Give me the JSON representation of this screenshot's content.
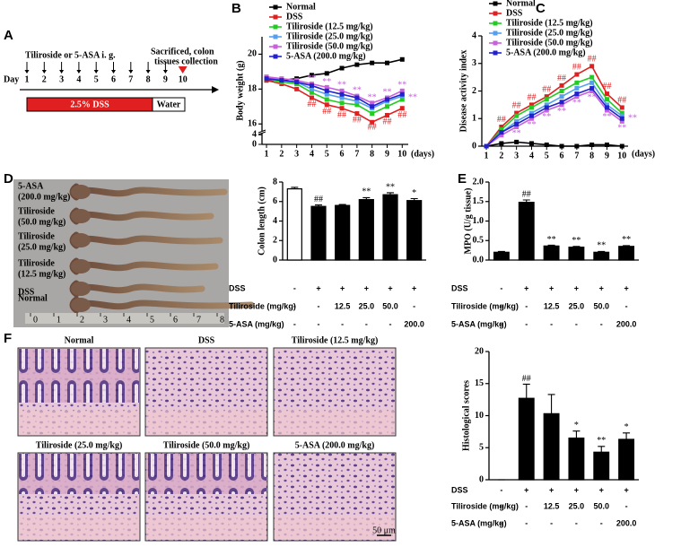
{
  "panel_a": {
    "label": "A",
    "day_label": "Day",
    "days": [
      1,
      2,
      3,
      4,
      5,
      6,
      7,
      8,
      9,
      10
    ],
    "treatment": "Tiliroside or 5-ASA i. g.",
    "sacrifice": [
      "Sacrificed, colon",
      "tissues collection"
    ],
    "dss": "2.5% DSS",
    "water": "Water"
  },
  "panel_d": {
    "label": "D",
    "labels": [
      [
        "5-ASA",
        "(200.0 mg/kg)"
      ],
      [
        "Tiliroside",
        "(50.0 mg/kg)"
      ],
      [
        "Tiliroside",
        "(25.0 mg/kg)"
      ],
      [
        "Tiliroside",
        "(12.5 mg/kg)"
      ],
      [
        "DSS"
      ],
      [
        "Normal"
      ]
    ],
    "ruler": [
      "0",
      "1",
      "2",
      "3",
      "4",
      "5",
      "6",
      "7",
      "8"
    ]
  },
  "panel_f": {
    "label": "F",
    "images": [
      "Normal",
      "DSS",
      "Tiliroside (12.5 mg/kg)",
      "Tiliroside (25.0 mg/kg)",
      "Tiliroside (50.0 mg/kg)",
      "5-ASA (200.0 mg/kg)"
    ],
    "scale_bar": "50 μm"
  },
  "chart_data": [
    {
      "type": "line",
      "label": "B",
      "y_label": "Body weight (g)",
      "x_label": "(days)",
      "x": [
        1,
        2,
        3,
        4,
        5,
        6,
        7,
        8,
        9,
        10
      ],
      "xlim": [
        0.7,
        10.4
      ],
      "xticks": [
        1,
        2,
        3,
        4,
        5,
        6,
        7,
        8,
        9,
        10
      ],
      "ylim": [
        15.6,
        21
      ],
      "yticks": [
        16,
        18,
        20
      ],
      "break_ylim": [
        0,
        4.5
      ],
      "break_yticks": [
        0,
        4
      ],
      "series": [
        {
          "name": "Normal",
          "color": "#000000",
          "values": [
            18.5,
            18.5,
            18.6,
            18.8,
            18.9,
            19.2,
            19.4,
            19.5,
            19.5,
            19.7
          ]
        },
        {
          "name": "DSS",
          "color": "#e02020",
          "values": [
            18.5,
            18.3,
            18.0,
            17.5,
            17.1,
            16.9,
            16.6,
            16.1,
            16.5,
            16.9
          ]
        },
        {
          "name": "Tiliroside (12.5 mg/kg)",
          "color": "#22cc22",
          "values": [
            18.6,
            18.4,
            18.3,
            17.8,
            17.4,
            17.2,
            17.1,
            16.6,
            17.0,
            17.4
          ]
        },
        {
          "name": "Tiliroside (25.0 mg/kg)",
          "color": "#55a0ee",
          "values": [
            18.7,
            18.5,
            18.4,
            18.0,
            17.7,
            17.5,
            17.3,
            16.9,
            17.3,
            17.6
          ]
        },
        {
          "name": "Tiliroside (50.0 mg/kg)",
          "color": "#c860dd",
          "values": [
            18.7,
            18.6,
            18.5,
            18.3,
            18.1,
            17.9,
            17.6,
            17.2,
            17.5,
            17.9
          ]
        },
        {
          "name": "5-ASA (200.0 mg/kg)",
          "color": "#2222cc",
          "values": [
            18.6,
            18.5,
            18.4,
            18.2,
            17.9,
            17.7,
            17.5,
            17.0,
            17.4,
            17.7
          ]
        }
      ],
      "annotations": [
        {
          "text": "##",
          "x": 4,
          "y": 17.1,
          "color": "#e02020"
        },
        {
          "text": "##",
          "x": 5,
          "y": 16.7,
          "color": "#e02020"
        },
        {
          "text": "##",
          "x": 6,
          "y": 16.5,
          "color": "#e02020"
        },
        {
          "text": "##",
          "x": 7,
          "y": 16.2,
          "color": "#e02020"
        },
        {
          "text": "##",
          "x": 8,
          "y": 15.8,
          "color": "#e02020"
        },
        {
          "text": "##",
          "x": 9,
          "y": 16.1,
          "color": "#e02020"
        },
        {
          "text": "##",
          "x": 10,
          "y": 16.5,
          "color": "#e02020"
        },
        {
          "text": "**",
          "x": 4,
          "y": 18.6,
          "color": "#c860dd"
        },
        {
          "text": "**",
          "x": 5,
          "y": 18.4,
          "color": "#c860dd"
        },
        {
          "text": "**",
          "x": 6,
          "y": 18.2,
          "color": "#c860dd"
        },
        {
          "text": "**",
          "x": 7,
          "y": 17.9,
          "color": "#c860dd"
        },
        {
          "text": "**",
          "x": 8,
          "y": 17.5,
          "color": "#c860dd"
        },
        {
          "text": "**",
          "x": 9,
          "y": 17.8,
          "color": "#c860dd"
        },
        {
          "text": "**",
          "x": 10,
          "y": 18.2,
          "color": "#c860dd"
        },
        {
          "text": "**",
          "x": 10.7,
          "y": 17.5,
          "color": "#c860dd"
        }
      ]
    },
    {
      "type": "line",
      "label": "C",
      "y_label": "Disease activity index",
      "x_label": "(days)",
      "x": [
        1,
        2,
        3,
        4,
        5,
        6,
        7,
        8,
        9,
        10
      ],
      "xlim": [
        0.7,
        10.4
      ],
      "xticks": [
        1,
        2,
        3,
        4,
        5,
        6,
        7,
        8,
        9,
        10
      ],
      "ylim": [
        0,
        4
      ],
      "yticks": [
        0,
        1,
        2,
        3,
        4
      ],
      "series": [
        {
          "name": "Normal",
          "color": "#000000",
          "values": [
            0,
            0.1,
            0.15,
            0.1,
            0.05,
            0,
            0,
            0.05,
            0.05,
            0
          ]
        },
        {
          "name": "DSS",
          "color": "#e02020",
          "values": [
            0,
            0.7,
            1.2,
            1.5,
            1.8,
            2.2,
            2.6,
            2.9,
            1.9,
            1.4
          ]
        },
        {
          "name": "Tiliroside (12.5 mg/kg)",
          "color": "#22cc22",
          "values": [
            0,
            0.6,
            1.1,
            1.4,
            1.7,
            2.0,
            2.3,
            2.5,
            1.7,
            1.2
          ]
        },
        {
          "name": "Tiliroside (25.0 mg/kg)",
          "color": "#55a0ee",
          "values": [
            0,
            0.5,
            0.9,
            1.2,
            1.5,
            1.8,
            2.1,
            2.3,
            1.5,
            1.1
          ]
        },
        {
          "name": "Tiliroside (50.0 mg/kg)",
          "color": "#c860dd",
          "values": [
            0,
            0.4,
            0.7,
            1.0,
            1.3,
            1.5,
            1.8,
            2.0,
            1.3,
            0.9
          ]
        },
        {
          "name": "5-ASA (200.0 mg/kg)",
          "color": "#2222cc",
          "values": [
            0,
            0.5,
            0.8,
            1.1,
            1.4,
            1.6,
            1.9,
            2.1,
            1.4,
            1.0
          ]
        }
      ],
      "annotations": [
        {
          "text": "##",
          "x": 2,
          "y": 0.95,
          "color": "#e02020"
        },
        {
          "text": "##",
          "x": 3,
          "y": 1.45,
          "color": "#e02020"
        },
        {
          "text": "##",
          "x": 4,
          "y": 1.75,
          "color": "#e02020"
        },
        {
          "text": "##",
          "x": 5,
          "y": 2.05,
          "color": "#e02020"
        },
        {
          "text": "##",
          "x": 6,
          "y": 2.45,
          "color": "#e02020"
        },
        {
          "text": "##",
          "x": 7,
          "y": 2.85,
          "color": "#e02020"
        },
        {
          "text": "##",
          "x": 8,
          "y": 3.15,
          "color": "#e02020"
        },
        {
          "text": "##",
          "x": 9,
          "y": 2.15,
          "color": "#e02020"
        },
        {
          "text": "##",
          "x": 10,
          "y": 1.65,
          "color": "#e02020"
        },
        {
          "text": "**",
          "x": 3,
          "y": 0.45,
          "color": "#c860dd"
        },
        {
          "text": "**",
          "x": 4,
          "y": 0.75,
          "color": "#c860dd"
        },
        {
          "text": "**",
          "x": 5,
          "y": 1.05,
          "color": "#c860dd"
        },
        {
          "text": "**",
          "x": 6,
          "y": 1.25,
          "color": "#c860dd"
        },
        {
          "text": "**",
          "x": 7,
          "y": 1.55,
          "color": "#c860dd"
        },
        {
          "text": "**",
          "x": 8,
          "y": 1.75,
          "color": "#c860dd"
        },
        {
          "text": "**",
          "x": 9,
          "y": 1.05,
          "color": "#c860dd"
        },
        {
          "text": "**",
          "x": 10,
          "y": 0.65,
          "color": "#c860dd"
        },
        {
          "text": "**",
          "x": 10.7,
          "y": 1.0,
          "color": "#c860dd"
        }
      ]
    },
    {
      "type": "bar",
      "y_label": "Colon length (cm)",
      "values": [
        7.3,
        5.5,
        5.6,
        6.2,
        6.7,
        6.1
      ],
      "errors": [
        0.15,
        0.15,
        0.1,
        0.2,
        0.2,
        0.2
      ],
      "colors": [
        "#ffffff",
        "#000000",
        "#000000",
        "#000000",
        "#000000",
        "#000000"
      ],
      "significance": [
        null,
        "##",
        null,
        "**",
        "**",
        "*"
      ],
      "ylim": [
        0,
        8
      ],
      "yticks": [
        0,
        2,
        4,
        6,
        8
      ],
      "table": [
        {
          "label": "DSS",
          "cells": [
            "-",
            "+",
            "+",
            "+",
            "+",
            "+"
          ]
        },
        {
          "label": "Tiliroside (mg/kg)",
          "cells": [
            "-",
            "-",
            "12.5",
            "25.0",
            "50.0",
            "-"
          ]
        },
        {
          "label": "5-ASA (mg/kg)",
          "cells": [
            "-",
            "-",
            "-",
            "-",
            "-",
            "200.0"
          ]
        }
      ]
    },
    {
      "type": "bar",
      "label": "E",
      "y_label": "MPO (U/g tissue)",
      "values": [
        0.2,
        1.48,
        0.36,
        0.33,
        0.2,
        0.35
      ],
      "errors": [
        0.02,
        0.06,
        0.02,
        0.02,
        0.02,
        0.02
      ],
      "colors": [
        "#000000",
        "#000000",
        "#000000",
        "#000000",
        "#000000",
        "#000000"
      ],
      "significance": [
        null,
        "##",
        "**",
        "**",
        "**",
        "**"
      ],
      "ylim": [
        0,
        2
      ],
      "yticks": [
        {
          "value": 0,
          "label": "0.0"
        },
        {
          "value": 0.5,
          "label": "0.5"
        },
        {
          "value": 1,
          "label": "1.0"
        },
        {
          "value": 1.5,
          "label": "1.5"
        },
        {
          "value": 2,
          "label": "2.0"
        }
      ],
      "table": [
        {
          "label": "DSS",
          "cells": [
            "-",
            "+",
            "+",
            "+",
            "+",
            "+"
          ]
        },
        {
          "label": "Tiliroside (mg/kg)",
          "cells": [
            "-",
            "-",
            "12.5",
            "25.0",
            "50.0",
            "-"
          ]
        },
        {
          "label": "5-ASA (mg/kg)",
          "cells": [
            "-",
            "-",
            "-",
            "-",
            "-",
            "200.0"
          ]
        }
      ]
    },
    {
      "type": "bar",
      "y_label": "Histological scores",
      "values": [
        0,
        12.7,
        10.3,
        6.5,
        4.3,
        6.3
      ],
      "errors": [
        0,
        2.2,
        3.0,
        1.1,
        0.9,
        1.0
      ],
      "colors": [
        "#000000",
        "#000000",
        "#000000",
        "#000000",
        "#000000",
        "#000000"
      ],
      "significance": [
        null,
        "##",
        null,
        "*",
        "**",
        "*"
      ],
      "ylim": [
        0,
        20
      ],
      "yticks": [
        0,
        5,
        10,
        15,
        20
      ],
      "table": [
        {
          "label": "DSS",
          "cells": [
            "-",
            "+",
            "+",
            "+",
            "+",
            "+"
          ]
        },
        {
          "label": "Tiliroside (mg/kg)",
          "cells": [
            "-",
            "-",
            "12.5",
            "25.0",
            "50.0",
            "-"
          ]
        },
        {
          "label": "5-ASA (mg/kg)",
          "cells": [
            "-",
            "-",
            "-",
            "-",
            "-",
            "200.0"
          ]
        }
      ]
    }
  ]
}
